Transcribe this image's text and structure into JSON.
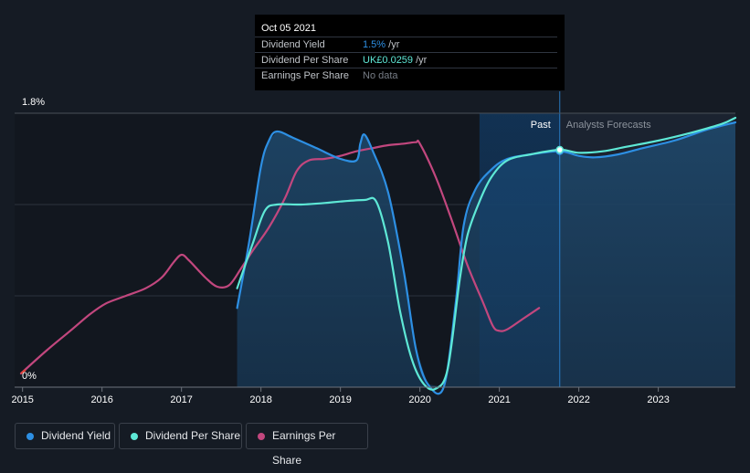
{
  "tooltip": {
    "date": "Oct 05 2021",
    "rows": [
      {
        "label": "Dividend Yield",
        "value": "1.5%",
        "unit": "/yr",
        "color": "#2d8fe3"
      },
      {
        "label": "Dividend Per Share",
        "value": "UK£0.0259",
        "unit": "/yr",
        "color": "#5ee8d6"
      },
      {
        "label": "Earnings Per Share",
        "value": "No data",
        "unit": "",
        "color": "#777d86"
      }
    ]
  },
  "legend": [
    {
      "label": "Dividend Yield",
      "color": "#2d8fe3"
    },
    {
      "label": "Dividend Per Share",
      "color": "#5ee8d6"
    },
    {
      "label": "Earnings Per Share",
      "color": "#c2477e"
    }
  ],
  "chart_data": {
    "type": "line",
    "y_ticks": [
      "1.8%",
      "0%"
    ],
    "ylim": [
      0,
      1.8
    ],
    "xlim": [
      2014.9,
      2023.97
    ],
    "x_ticks": [
      "2015",
      "2016",
      "2017",
      "2018",
      "2019",
      "2020",
      "2021",
      "2022",
      "2023"
    ],
    "region_labels": {
      "past": "Past",
      "forecast": "Analysts Forecasts"
    },
    "highlight_x": 2021.76,
    "forecast_band_start": 2020.75,
    "fill_start": 2017.7,
    "grid": true,
    "series": [
      {
        "name": "Dividend Yield",
        "color": "#2d8fe3",
        "points": [
          [
            2017.7,
            0.52
          ],
          [
            2017.85,
            0.95
          ],
          [
            2018.0,
            1.45
          ],
          [
            2018.1,
            1.62
          ],
          [
            2018.2,
            1.68
          ],
          [
            2018.4,
            1.64
          ],
          [
            2018.7,
            1.57
          ],
          [
            2019.0,
            1.5
          ],
          [
            2019.2,
            1.49
          ],
          [
            2019.25,
            1.6
          ],
          [
            2019.3,
            1.66
          ],
          [
            2019.4,
            1.56
          ],
          [
            2019.6,
            1.28
          ],
          [
            2019.8,
            0.75
          ],
          [
            2019.95,
            0.25
          ],
          [
            2020.1,
            0.02
          ],
          [
            2020.3,
            0.0
          ],
          [
            2020.45,
            0.55
          ],
          [
            2020.55,
            1.06
          ],
          [
            2020.7,
            1.3
          ],
          [
            2020.9,
            1.43
          ],
          [
            2021.1,
            1.5
          ],
          [
            2021.4,
            1.53
          ],
          [
            2021.76,
            1.55
          ],
          [
            2022.0,
            1.52
          ],
          [
            2022.2,
            1.51
          ],
          [
            2022.5,
            1.53
          ],
          [
            2022.8,
            1.57
          ],
          [
            2023.2,
            1.62
          ],
          [
            2023.6,
            1.69
          ],
          [
            2023.97,
            1.74
          ]
        ]
      },
      {
        "name": "Dividend Per Share",
        "color": "#5ee8d6",
        "points": [
          [
            2017.7,
            0.65
          ],
          [
            2017.9,
            0.95
          ],
          [
            2018.05,
            1.16
          ],
          [
            2018.2,
            1.2
          ],
          [
            2018.5,
            1.2
          ],
          [
            2018.8,
            1.21
          ],
          [
            2019.0,
            1.22
          ],
          [
            2019.3,
            1.23
          ],
          [
            2019.45,
            1.22
          ],
          [
            2019.6,
            0.95
          ],
          [
            2019.75,
            0.5
          ],
          [
            2019.9,
            0.18
          ],
          [
            2020.05,
            0.02
          ],
          [
            2020.2,
            -0.01
          ],
          [
            2020.35,
            0.12
          ],
          [
            2020.5,
            0.7
          ],
          [
            2020.6,
            1.0
          ],
          [
            2020.75,
            1.22
          ],
          [
            2020.9,
            1.38
          ],
          [
            2021.1,
            1.49
          ],
          [
            2021.4,
            1.53
          ],
          [
            2021.76,
            1.56
          ],
          [
            2022.0,
            1.54
          ],
          [
            2022.3,
            1.55
          ],
          [
            2022.6,
            1.58
          ],
          [
            2023.0,
            1.62
          ],
          [
            2023.4,
            1.67
          ],
          [
            2023.8,
            1.73
          ],
          [
            2023.97,
            1.77
          ]
        ]
      },
      {
        "name": "Earnings Per Share",
        "color": "#c2477e",
        "points": [
          [
            2014.98,
            0.09
          ],
          [
            2015.3,
            0.24
          ],
          [
            2015.6,
            0.37
          ],
          [
            2015.85,
            0.48
          ],
          [
            2016.05,
            0.55
          ],
          [
            2016.3,
            0.6
          ],
          [
            2016.55,
            0.65
          ],
          [
            2016.75,
            0.72
          ],
          [
            2016.9,
            0.82
          ],
          [
            2017.0,
            0.87
          ],
          [
            2017.1,
            0.83
          ],
          [
            2017.3,
            0.72
          ],
          [
            2017.45,
            0.66
          ],
          [
            2017.6,
            0.67
          ],
          [
            2017.75,
            0.78
          ],
          [
            2017.9,
            0.9
          ],
          [
            2018.1,
            1.05
          ],
          [
            2018.3,
            1.24
          ],
          [
            2018.45,
            1.42
          ],
          [
            2018.6,
            1.49
          ],
          [
            2018.8,
            1.5
          ],
          [
            2019.0,
            1.52
          ],
          [
            2019.2,
            1.55
          ],
          [
            2019.4,
            1.57
          ],
          [
            2019.6,
            1.59
          ],
          [
            2019.8,
            1.6
          ],
          [
            2019.95,
            1.61
          ],
          [
            2020.0,
            1.6
          ],
          [
            2020.2,
            1.38
          ],
          [
            2020.4,
            1.1
          ],
          [
            2020.6,
            0.8
          ],
          [
            2020.8,
            0.55
          ],
          [
            2020.92,
            0.4
          ],
          [
            2021.0,
            0.37
          ],
          [
            2021.1,
            0.38
          ],
          [
            2021.3,
            0.45
          ],
          [
            2021.5,
            0.52
          ]
        ]
      }
    ]
  }
}
